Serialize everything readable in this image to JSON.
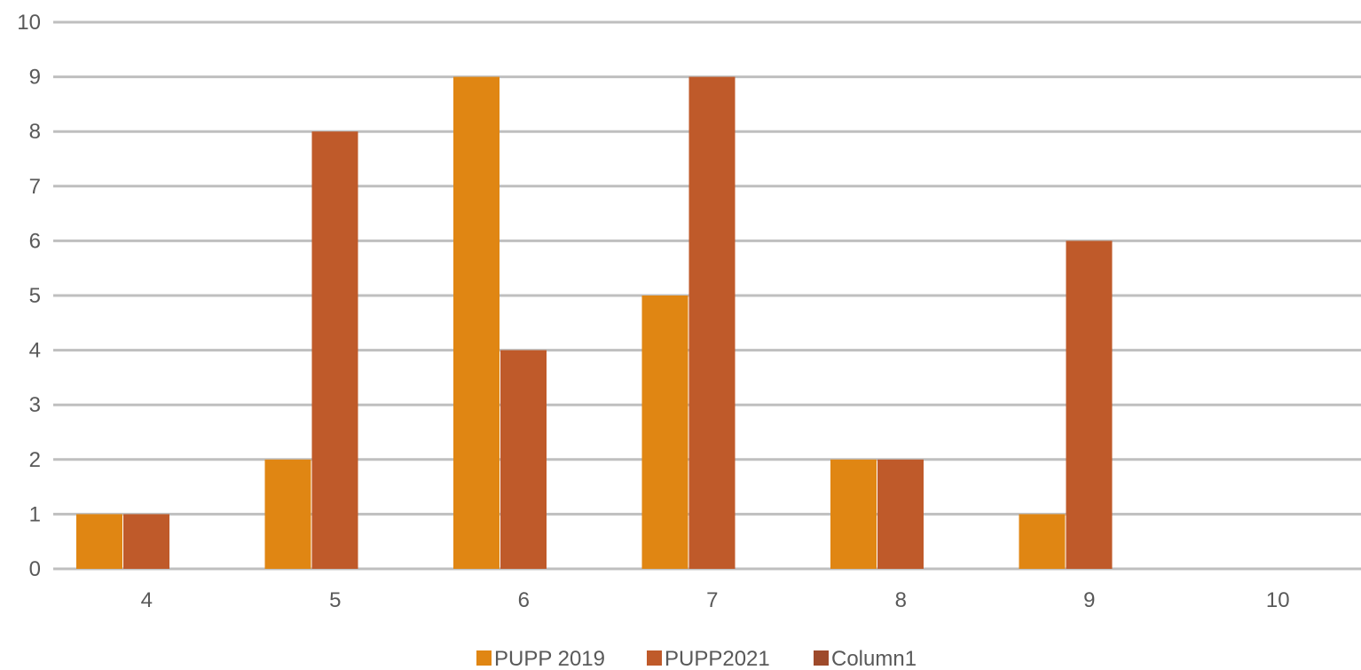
{
  "chart_data": {
    "type": "bar",
    "title": "",
    "xlabel": "",
    "ylabel": "",
    "categories": [
      "4",
      "5",
      "6",
      "7",
      "8",
      "9",
      "10"
    ],
    "series": [
      {
        "name": "PUPP 2019",
        "color": "#e08613",
        "values": [
          1,
          2,
          9,
          5,
          2,
          1,
          0
        ]
      },
      {
        "name": "PUPP2021",
        "color": "#bf5a2a",
        "values": [
          1,
          8,
          4,
          9,
          2,
          6,
          0
        ]
      },
      {
        "name": "Column1",
        "color": "#9e4a2b",
        "values": [
          0,
          0,
          0,
          0,
          0,
          0,
          0
        ]
      }
    ],
    "ylim": [
      0,
      10
    ],
    "yticks": [
      "0",
      "1",
      "2",
      "3",
      "4",
      "5",
      "6",
      "7",
      "8",
      "9",
      "10"
    ],
    "grid": true,
    "legend_position": "bottom"
  }
}
